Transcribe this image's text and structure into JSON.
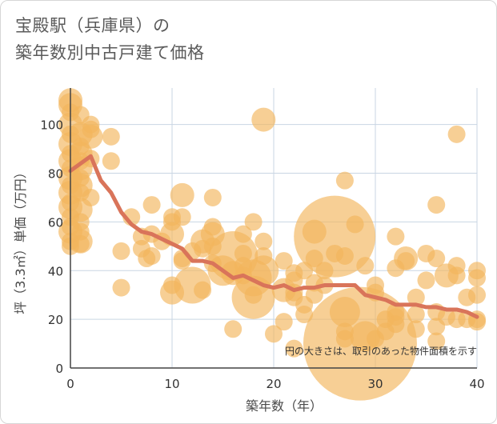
{
  "title_line1": "宝殿駅（兵庫県）の",
  "title_line2": "築年数別中古戸建て価格",
  "note": "円の大きさは、取引のあった物件面積を示す",
  "colors": {
    "bubble": "#f2b55c",
    "line": "#d9745a",
    "grid": "#c9d6e3",
    "axis": "#444444"
  },
  "chart_data": {
    "type": "scatter",
    "xlabel": "築年数（年）",
    "ylabel": "坪（3.3㎡）単価（万円）",
    "xlim": [
      0,
      40
    ],
    "ylim": [
      0,
      115
    ],
    "xticks": [
      0,
      10,
      20,
      30,
      40
    ],
    "yticks": [
      0,
      20,
      40,
      60,
      80,
      100
    ],
    "trend": {
      "x": [
        0,
        1,
        2,
        3,
        4,
        5,
        6,
        7,
        8,
        9,
        10,
        11,
        12,
        13,
        14,
        15,
        16,
        17,
        18,
        19,
        20,
        21,
        22,
        23,
        24,
        25,
        26,
        27,
        28,
        29,
        30,
        31,
        32,
        33,
        34,
        35,
        36,
        37,
        38,
        39,
        40
      ],
      "y": [
        81,
        84,
        87,
        77,
        72,
        64,
        59,
        56,
        55,
        53,
        51,
        49,
        44,
        44,
        43,
        40,
        37,
        38,
        36,
        34,
        33,
        34,
        32,
        33,
        33,
        34,
        34,
        34,
        34,
        30,
        29,
        28,
        26,
        26,
        26,
        25,
        25,
        24,
        24,
        23,
        21
      ]
    },
    "bubbles": [
      {
        "x": 0,
        "y": 110,
        "s": 3
      },
      {
        "x": 0,
        "y": 108,
        "s": 3
      },
      {
        "x": 0,
        "y": 105,
        "s": 2
      },
      {
        "x": 0,
        "y": 100,
        "s": 3
      },
      {
        "x": 0,
        "y": 96,
        "s": 2
      },
      {
        "x": 0,
        "y": 92,
        "s": 3
      },
      {
        "x": 0,
        "y": 88,
        "s": 2
      },
      {
        "x": 0,
        "y": 85,
        "s": 3
      },
      {
        "x": 0,
        "y": 82,
        "s": 2
      },
      {
        "x": 0,
        "y": 78,
        "s": 3
      },
      {
        "x": 0,
        "y": 75,
        "s": 2
      },
      {
        "x": 0,
        "y": 72,
        "s": 3
      },
      {
        "x": 0,
        "y": 68,
        "s": 2
      },
      {
        "x": 0,
        "y": 66,
        "s": 3
      },
      {
        "x": 0,
        "y": 62,
        "s": 2
      },
      {
        "x": 0,
        "y": 58,
        "s": 2
      },
      {
        "x": 0,
        "y": 56,
        "s": 3
      },
      {
        "x": 0,
        "y": 52,
        "s": 2
      },
      {
        "x": 0,
        "y": 50,
        "s": 2
      },
      {
        "x": 1,
        "y": 104,
        "s": 2
      },
      {
        "x": 1,
        "y": 96,
        "s": 3
      },
      {
        "x": 1,
        "y": 91,
        "s": 2
      },
      {
        "x": 1,
        "y": 88,
        "s": 3
      },
      {
        "x": 1,
        "y": 85,
        "s": 2
      },
      {
        "x": 1,
        "y": 82,
        "s": 3
      },
      {
        "x": 1,
        "y": 78,
        "s": 2
      },
      {
        "x": 1,
        "y": 75,
        "s": 3
      },
      {
        "x": 1,
        "y": 72,
        "s": 2
      },
      {
        "x": 1,
        "y": 65,
        "s": 3
      },
      {
        "x": 1,
        "y": 60,
        "s": 2
      },
      {
        "x": 1,
        "y": 56,
        "s": 2
      },
      {
        "x": 1,
        "y": 52,
        "s": 3
      },
      {
        "x": 1,
        "y": 51,
        "s": 2
      },
      {
        "x": 2,
        "y": 100,
        "s": 2
      },
      {
        "x": 2,
        "y": 98,
        "s": 2
      },
      {
        "x": 2,
        "y": 95,
        "s": 3
      },
      {
        "x": 2,
        "y": 86,
        "s": 2
      },
      {
        "x": 2,
        "y": 70,
        "s": 2
      },
      {
        "x": 4,
        "y": 95,
        "s": 2
      },
      {
        "x": 4,
        "y": 85,
        "s": 2
      },
      {
        "x": 5,
        "y": 48,
        "s": 2
      },
      {
        "x": 5,
        "y": 33,
        "s": 2
      },
      {
        "x": 6,
        "y": 62,
        "s": 2
      },
      {
        "x": 7,
        "y": 54,
        "s": 2
      },
      {
        "x": 7,
        "y": 49,
        "s": 2
      },
      {
        "x": 7.5,
        "y": 45,
        "s": 2
      },
      {
        "x": 8,
        "y": 67,
        "s": 2
      },
      {
        "x": 8,
        "y": 55,
        "s": 2
      },
      {
        "x": 8,
        "y": 46,
        "s": 2
      },
      {
        "x": 9,
        "y": 52,
        "s": 2
      },
      {
        "x": 10,
        "y": 62,
        "s": 2
      },
      {
        "x": 10,
        "y": 60,
        "s": 2
      },
      {
        "x": 10,
        "y": 55,
        "s": 3
      },
      {
        "x": 10,
        "y": 34,
        "s": 2
      },
      {
        "x": 10,
        "y": 31,
        "s": 3
      },
      {
        "x": 11,
        "y": 71,
        "s": 3
      },
      {
        "x": 11,
        "y": 62,
        "s": 2
      },
      {
        "x": 11,
        "y": 45,
        "s": 2
      },
      {
        "x": 11,
        "y": 44,
        "s": 2
      },
      {
        "x": 12,
        "y": 48,
        "s": 2
      },
      {
        "x": 12,
        "y": 34,
        "s": 5
      },
      {
        "x": 13,
        "y": 52,
        "s": 3
      },
      {
        "x": 13,
        "y": 49,
        "s": 2
      },
      {
        "x": 13,
        "y": 32,
        "s": 2
      },
      {
        "x": 14,
        "y": 70,
        "s": 2
      },
      {
        "x": 14,
        "y": 58,
        "s": 2
      },
      {
        "x": 14,
        "y": 55,
        "s": 3
      },
      {
        "x": 14,
        "y": 50,
        "s": 2
      },
      {
        "x": 14,
        "y": 43,
        "s": 2
      },
      {
        "x": 15,
        "y": 40,
        "s": 4
      },
      {
        "x": 16,
        "y": 46,
        "s": 7
      },
      {
        "x": 16,
        "y": 39,
        "s": 3
      },
      {
        "x": 16,
        "y": 16,
        "s": 2
      },
      {
        "x": 17,
        "y": 55,
        "s": 2
      },
      {
        "x": 17,
        "y": 47,
        "s": 2
      },
      {
        "x": 17,
        "y": 42,
        "s": 2
      },
      {
        "x": 17,
        "y": 38,
        "s": 2
      },
      {
        "x": 18,
        "y": 60,
        "s": 2
      },
      {
        "x": 18,
        "y": 37,
        "s": 5
      },
      {
        "x": 18,
        "y": 29,
        "s": 6
      },
      {
        "x": 18,
        "y": 30,
        "s": 2
      },
      {
        "x": 19,
        "y": 102,
        "s": 3
      },
      {
        "x": 19,
        "y": 52,
        "s": 2
      },
      {
        "x": 19,
        "y": 46,
        "s": 2
      },
      {
        "x": 19,
        "y": 40,
        "s": 4
      },
      {
        "x": 20,
        "y": 14,
        "s": 2
      },
      {
        "x": 21,
        "y": 44,
        "s": 2
      },
      {
        "x": 21,
        "y": 32,
        "s": 3
      },
      {
        "x": 21,
        "y": 19,
        "s": 2
      },
      {
        "x": 22,
        "y": 39,
        "s": 2
      },
      {
        "x": 22,
        "y": 36,
        "s": 2
      },
      {
        "x": 22,
        "y": 31,
        "s": 2
      },
      {
        "x": 22,
        "y": 29,
        "s": 2
      },
      {
        "x": 22,
        "y": 8,
        "s": 2
      },
      {
        "x": 23,
        "y": 40,
        "s": 2
      },
      {
        "x": 23,
        "y": 26,
        "s": 2
      },
      {
        "x": 23,
        "y": 22,
        "s": 2
      },
      {
        "x": 24,
        "y": 56,
        "s": 3
      },
      {
        "x": 24,
        "y": 45,
        "s": 2
      },
      {
        "x": 24,
        "y": 35,
        "s": 2
      },
      {
        "x": 24,
        "y": 30,
        "s": 2
      },
      {
        "x": 25,
        "y": 40,
        "s": 2
      },
      {
        "x": 25,
        "y": 34,
        "s": 2
      },
      {
        "x": 26,
        "y": 54,
        "s": 12
      },
      {
        "x": 26,
        "y": 47,
        "s": 2
      },
      {
        "x": 27,
        "y": 77,
        "s": 2
      },
      {
        "x": 27,
        "y": 46,
        "s": 2
      },
      {
        "x": 27,
        "y": 23,
        "s": 4
      },
      {
        "x": 27,
        "y": 15,
        "s": 2
      },
      {
        "x": 27,
        "y": 12,
        "s": 2
      },
      {
        "x": 28,
        "y": 59,
        "s": 2
      },
      {
        "x": 28.5,
        "y": 10,
        "s": 17
      },
      {
        "x": 29,
        "y": 42,
        "s": 2
      },
      {
        "x": 29,
        "y": 13,
        "s": 4
      },
      {
        "x": 30,
        "y": 34,
        "s": 2
      },
      {
        "x": 30,
        "y": 31,
        "s": 2
      },
      {
        "x": 30,
        "y": 12,
        "s": 2
      },
      {
        "x": 31,
        "y": 20,
        "s": 2
      },
      {
        "x": 31,
        "y": 15,
        "s": 2
      },
      {
        "x": 32,
        "y": 54,
        "s": 2
      },
      {
        "x": 32,
        "y": 41,
        "s": 2
      },
      {
        "x": 32,
        "y": 23,
        "s": 2
      },
      {
        "x": 32,
        "y": 21,
        "s": 2
      },
      {
        "x": 32,
        "y": 18,
        "s": 2
      },
      {
        "x": 33,
        "y": 45,
        "s": 3
      },
      {
        "x": 33,
        "y": 44,
        "s": 2
      },
      {
        "x": 34,
        "y": 29,
        "s": 2
      },
      {
        "x": 34,
        "y": 22,
        "s": 2
      },
      {
        "x": 34,
        "y": 16,
        "s": 2
      },
      {
        "x": 35,
        "y": 47,
        "s": 2
      },
      {
        "x": 35,
        "y": 36,
        "s": 2
      },
      {
        "x": 36,
        "y": 67,
        "s": 2
      },
      {
        "x": 36,
        "y": 45,
        "s": 2
      },
      {
        "x": 36,
        "y": 23,
        "s": 2
      },
      {
        "x": 36,
        "y": 17,
        "s": 2
      },
      {
        "x": 36,
        "y": 11,
        "s": 2
      },
      {
        "x": 37,
        "y": 38,
        "s": 3
      },
      {
        "x": 37,
        "y": 21,
        "s": 2
      },
      {
        "x": 38,
        "y": 96,
        "s": 2
      },
      {
        "x": 38,
        "y": 42,
        "s": 2
      },
      {
        "x": 38,
        "y": 38,
        "s": 2
      },
      {
        "x": 38,
        "y": 20,
        "s": 2
      },
      {
        "x": 39,
        "y": 29,
        "s": 2
      },
      {
        "x": 39,
        "y": 20,
        "s": 2
      },
      {
        "x": 40,
        "y": 40,
        "s": 2
      },
      {
        "x": 40,
        "y": 37,
        "s": 2
      },
      {
        "x": 40,
        "y": 30,
        "s": 2
      },
      {
        "x": 40,
        "y": 19,
        "s": 2
      },
      {
        "x": 40,
        "y": 20,
        "s": 2
      }
    ]
  }
}
